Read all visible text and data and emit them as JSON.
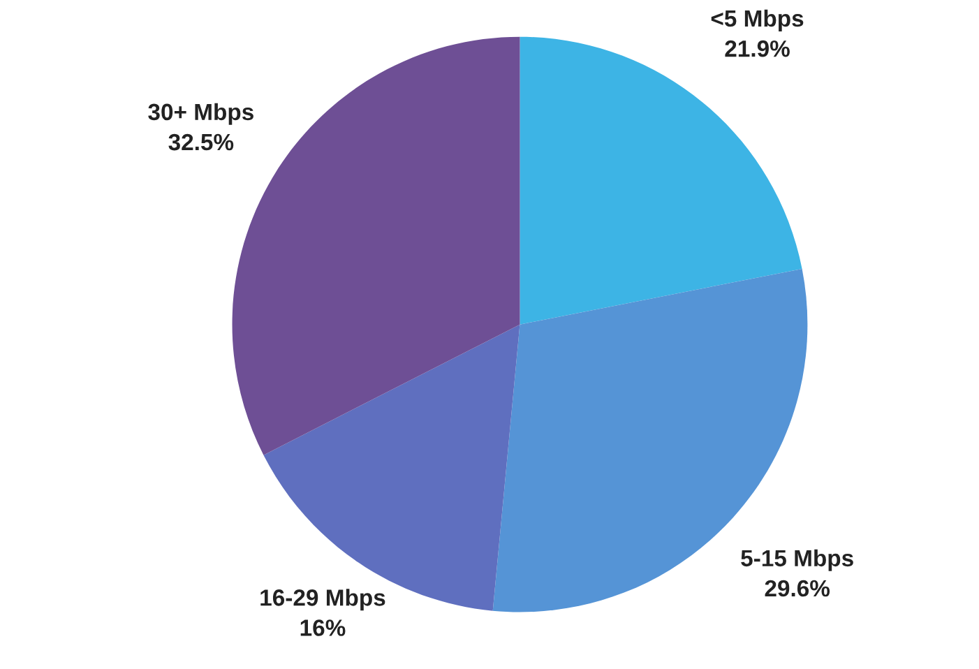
{
  "chart_data": {
    "type": "pie",
    "categories": [
      "<5 Mbps",
      "5-15 Mbps",
      "16-29 Mbps",
      "30+ Mbps"
    ],
    "values": [
      21.9,
      29.6,
      16,
      32.5
    ],
    "value_labels": [
      "21.9%",
      "29.6%",
      "16%",
      "32.5%"
    ],
    "colors": [
      "#3db4e5",
      "#5594d6",
      "#5f6fbf",
      "#6e4f95"
    ]
  }
}
